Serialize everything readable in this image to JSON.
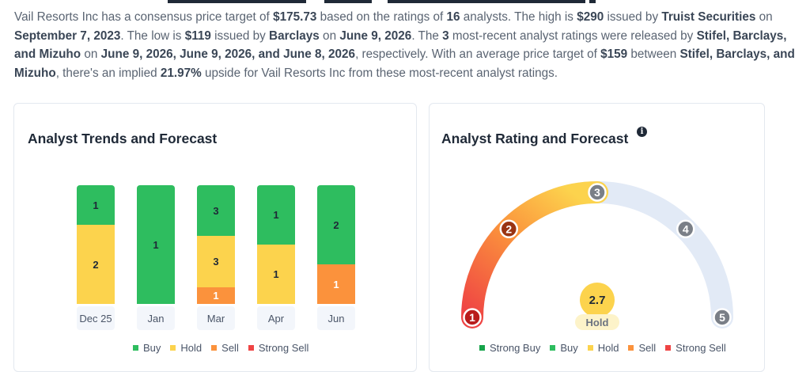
{
  "intro": {
    "t1": "Vail Resorts Inc has a consensus price target of ",
    "consensus": "$175.73",
    "t2": " based on the ratings of ",
    "count": "16",
    "t3": " analysts. The high is ",
    "high": "$290",
    "t4": " issued by ",
    "high_firm": "Truist Securities",
    "t5": " on ",
    "high_date": "September 7, 2023",
    "t6": ". The low is ",
    "low": "$119",
    "t7": " issued by ",
    "low_firm": "Barclays",
    "t8": " on ",
    "low_date": "June 9, 2026",
    "t9": ". The ",
    "recent_count": "3",
    "t10": " most-recent analyst ratings were released by ",
    "recent_firms": "Stifel, Barclays, and Mizuho",
    "t11": " on ",
    "recent_dates": "June 9, 2026, June 9, 2026, and June 8, 2026",
    "t12": ", respectively. With an average price target of ",
    "avg": "$159",
    "t13": " between ",
    "avg_firms": "Stifel, Barclays, and Mizuho",
    "t14": ", there's an implied ",
    "upside": "21.97%",
    "t15": " upside for Vail Resorts Inc from these most-recent analyst ratings."
  },
  "trends": {
    "title": "Analyst Trends and Forecast",
    "colors": {
      "buy": "#2ebd5f",
      "hold": "#fcd34d",
      "sell": "#fb923c",
      "strong_sell": "#ef4444"
    }
  },
  "chart_data": [
    {
      "type": "bar",
      "stacked": true,
      "normalized": true,
      "categories": [
        "Dec 25",
        "Jan",
        "Mar",
        "Apr",
        "Jun"
      ],
      "series": [
        {
          "name": "Buy",
          "values": [
            1,
            1,
            3,
            1,
            2
          ]
        },
        {
          "name": "Hold",
          "values": [
            2,
            0,
            3,
            1,
            0
          ]
        },
        {
          "name": "Sell",
          "values": [
            0,
            0,
            1,
            0,
            1
          ]
        },
        {
          "name": "Strong Sell",
          "values": [
            0,
            0,
            0,
            0,
            0
          ]
        }
      ],
      "legend": [
        "Buy",
        "Hold",
        "Sell",
        "Strong Sell"
      ],
      "legend_position": "bottom"
    }
  ],
  "rating": {
    "title": "Analyst Rating and Forecast",
    "info_icon": "info-icon",
    "value": "2.7",
    "value_num": 2.7,
    "label": "Hold",
    "scale": [
      "1",
      "2",
      "3",
      "4",
      "5"
    ],
    "legend": [
      "Strong Buy",
      "Buy",
      "Hold",
      "Sell",
      "Strong Sell"
    ],
    "colors": {
      "strong_buy": "#16a34a",
      "buy": "#2ebd5f",
      "hold": "#fcd34d",
      "sell": "#fb923c",
      "strong_sell": "#ef4444",
      "track": "#e2eaf6",
      "marker": "#7a7f87",
      "badge": "#fcd34d",
      "pill": "#fdf3c9"
    }
  }
}
